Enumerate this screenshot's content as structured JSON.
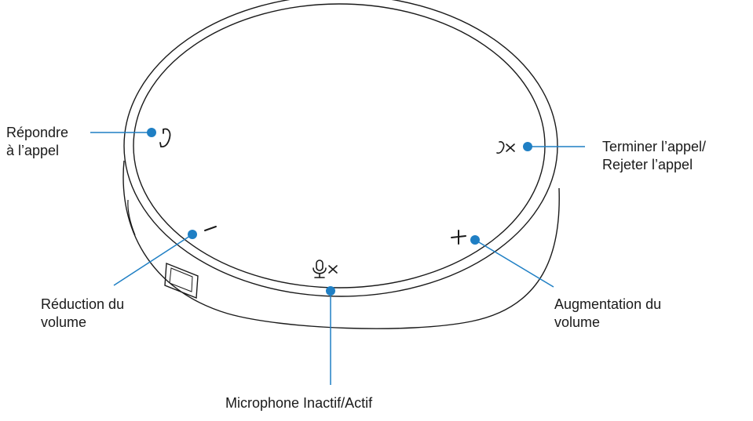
{
  "diagram": {
    "callouts": {
      "answer": {
        "lines": [
          "Répondre",
          "à l’appel"
        ]
      },
      "end_reject": {
        "lines": [
          "Terminer l’appel/",
          "Rejeter l’appel"
        ]
      },
      "volume_down": {
        "lines": [
          "Réduction du",
          "volume"
        ]
      },
      "volume_up": {
        "lines": [
          "Augmentation du",
          "volume"
        ]
      },
      "microphone": {
        "lines": [
          "Microphone Inactif/Actif"
        ]
      }
    },
    "colors": {
      "callout": "#1f7fc4",
      "device_outline": "#1a1a1a",
      "text": "#1a1a1a"
    },
    "icons": [
      "phone-answer-icon",
      "phone-hangup-icon",
      "minus-icon",
      "plus-icon",
      "microphone-mute-icon"
    ]
  }
}
